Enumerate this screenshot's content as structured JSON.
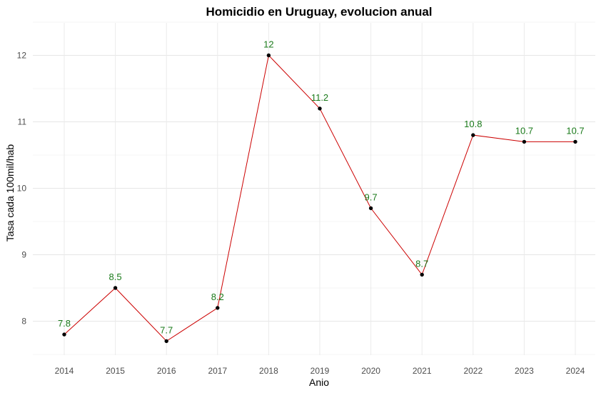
{
  "chart_data": {
    "type": "line",
    "title": "Homicidio en Uruguay, evolucion anual",
    "xlabel": "Anio",
    "ylabel": "Tasa cada 100mil/hab",
    "x": [
      "2014",
      "2015",
      "2016",
      "2017",
      "2018",
      "2019",
      "2020",
      "2021",
      "2022",
      "2023",
      "2024"
    ],
    "y_ticks": [
      "8",
      "9",
      "10",
      "11",
      "12"
    ],
    "ylim": [
      7.5,
      12.5
    ],
    "series": [
      {
        "values": [
          7.8,
          8.5,
          7.7,
          8.2,
          12,
          11.2,
          9.7,
          8.7,
          10.8,
          10.7,
          10.7
        ],
        "labels": [
          "7.8",
          "8.5",
          "7.7",
          "8.2",
          "12",
          "11.2",
          "9.7",
          "8.7",
          "10.8",
          "10.7",
          "10.7"
        ],
        "line_color": "#cc0000",
        "point_color": "#000000",
        "label_color": "#1a7a1a"
      }
    ],
    "grid": true,
    "legend": "none"
  }
}
